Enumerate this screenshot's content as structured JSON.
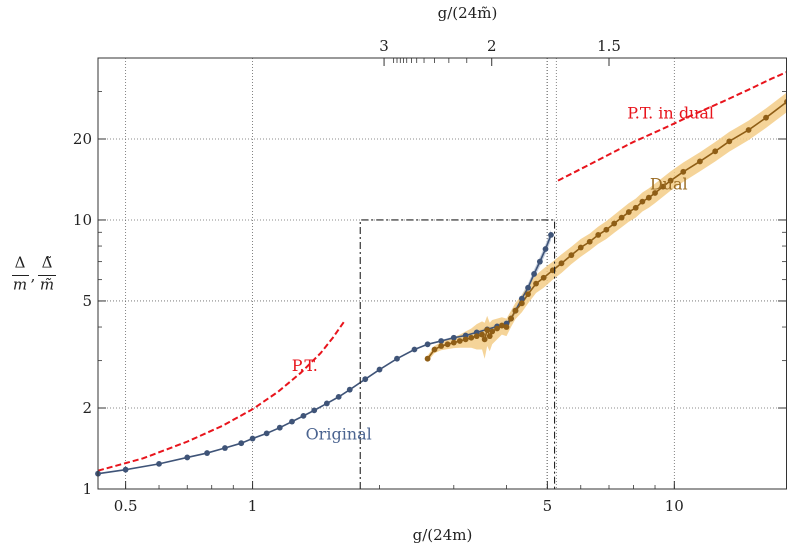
{
  "chart_data": {
    "type": "line",
    "scale": {
      "x": "log",
      "y": "log"
    },
    "xlabel": "g/(24m)",
    "x2label": "g/(24m̃)",
    "ylabel": {
      "num1": "Δ",
      "den1": "m",
      "sep": ",",
      "num2": "Δ̃",
      "den2": "m̃"
    },
    "xlim": [
      0.43,
      18.5
    ],
    "ylim": [
      1.0,
      40.0
    ],
    "grid": true,
    "xticks": [
      {
        "value": 0.5,
        "label": "0.5"
      },
      {
        "value": 1,
        "label": "1"
      },
      {
        "value": 5,
        "label": "5"
      },
      {
        "value": 10,
        "label": "10"
      }
    ],
    "x2ticks": [
      {
        "value": 2.05,
        "label": "3"
      },
      {
        "value": 3.69,
        "label": "2"
      },
      {
        "value": 7.0,
        "label": "1.5"
      }
    ],
    "x2minor": [
      2.16,
      2.2,
      2.24,
      2.28,
      2.32,
      2.38,
      2.45,
      2.55,
      2.7,
      2.92,
      3.22
    ],
    "x2grid": [
      4.99,
      5.25
    ],
    "yticks": [
      {
        "value": 1,
        "label": "1"
      },
      {
        "value": 2,
        "label": "2"
      },
      {
        "value": 5,
        "label": "5"
      },
      {
        "value": 10,
        "label": "10"
      },
      {
        "value": 20,
        "label": "20"
      }
    ],
    "box": {
      "x": [
        1.8,
        5.2
      ],
      "y": [
        1.0,
        10.0
      ]
    },
    "annotations": [
      {
        "text": "P.T.",
        "x": 1.33,
        "y": 2.75,
        "color": "#e8141c"
      },
      {
        "text": "P.T. in dual",
        "x": 9.8,
        "y": 23.8,
        "color": "#e8141c"
      },
      {
        "text": "Original",
        "x": 1.6,
        "y": 1.53,
        "color": "#4b6490"
      },
      {
        "text": "Dual",
        "x": 9.7,
        "y": 13.0,
        "color": "#9a6b22"
      }
    ],
    "series": [
      {
        "name": "Original",
        "color": "#3f5478",
        "band": "#b9c4d6",
        "x": [
          0.43,
          0.5,
          0.6,
          0.7,
          0.78,
          0.86,
          0.94,
          1.0,
          1.08,
          1.16,
          1.24,
          1.32,
          1.4,
          1.5,
          1.6,
          1.7,
          1.85,
          2.0,
          2.2,
          2.42,
          2.6,
          2.8,
          3.0,
          3.2,
          3.4,
          3.6,
          3.8,
          4.0,
          4.1,
          4.2,
          4.35,
          4.5,
          4.65,
          4.8,
          4.95,
          5.1
        ],
        "y": [
          1.14,
          1.18,
          1.24,
          1.31,
          1.36,
          1.42,
          1.48,
          1.54,
          1.61,
          1.69,
          1.78,
          1.87,
          1.96,
          2.08,
          2.2,
          2.34,
          2.56,
          2.78,
          3.05,
          3.3,
          3.45,
          3.55,
          3.65,
          3.72,
          3.82,
          3.92,
          4.02,
          4.12,
          4.3,
          4.6,
          5.1,
          5.6,
          6.3,
          7.0,
          7.8,
          8.8
        ],
        "error": [
          0.0,
          0.0,
          0.0,
          0.0,
          0.0,
          0.0,
          0.0,
          0.0,
          0.0,
          0.0,
          0.0,
          0.0,
          0.0,
          0.0,
          0.0,
          0.0,
          0.0,
          0.0,
          0.0,
          0.0,
          0.02,
          0.03,
          0.04,
          0.05,
          0.06,
          0.08,
          0.1,
          0.12,
          0.14,
          0.16,
          0.18,
          0.2,
          0.24,
          0.28,
          0.32,
          0.4
        ]
      },
      {
        "name": "Dual",
        "color": "#8f5e16",
        "band": "#f3cc87",
        "x": [
          2.6,
          2.7,
          2.8,
          2.9,
          3.0,
          3.1,
          3.2,
          3.3,
          3.4,
          3.5,
          3.55,
          3.6,
          3.65,
          3.7,
          3.8,
          3.9,
          4.0,
          4.1,
          4.2,
          4.35,
          4.5,
          4.7,
          4.9,
          5.15,
          5.4,
          5.7,
          6.0,
          6.3,
          6.6,
          6.9,
          7.2,
          7.5,
          7.8,
          8.1,
          8.4,
          8.7,
          9.0,
          9.4,
          9.8,
          10.5,
          11.5,
          12.5,
          13.5,
          15.0,
          16.5,
          18.5
        ],
        "y": [
          3.05,
          3.3,
          3.4,
          3.45,
          3.5,
          3.55,
          3.6,
          3.65,
          3.7,
          3.75,
          3.6,
          3.9,
          3.7,
          3.85,
          3.95,
          4.05,
          4.0,
          4.3,
          4.6,
          4.9,
          5.3,
          5.8,
          6.1,
          6.5,
          6.9,
          7.4,
          7.9,
          8.3,
          8.8,
          9.2,
          9.7,
          10.2,
          10.7,
          11.1,
          11.7,
          12.1,
          12.6,
          13.3,
          14.0,
          15.1,
          16.5,
          18.0,
          19.6,
          21.6,
          24.0,
          27.5
        ],
        "error": [
          0.08,
          0.1,
          0.12,
          0.14,
          0.16,
          0.2,
          0.25,
          0.3,
          0.4,
          0.45,
          0.55,
          0.5,
          0.45,
          0.4,
          0.35,
          0.3,
          0.3,
          0.3,
          0.32,
          0.36,
          0.4,
          0.45,
          0.5,
          0.5,
          0.55,
          0.55,
          0.6,
          0.6,
          0.65,
          0.7,
          0.75,
          0.8,
          0.85,
          0.9,
          0.95,
          1.0,
          1.05,
          1.1,
          1.15,
          1.25,
          1.35,
          1.5,
          1.65,
          1.8,
          2.0,
          2.3
        ]
      },
      {
        "name": "P.T.",
        "color": "#e8141c",
        "dashed": true,
        "x": [
          0.43,
          0.55,
          0.7,
          0.85,
          1.0,
          1.15,
          1.3,
          1.45,
          1.55,
          1.65
        ],
        "y": [
          1.17,
          1.3,
          1.5,
          1.72,
          1.98,
          2.3,
          2.7,
          3.2,
          3.65,
          4.2
        ]
      },
      {
        "name": "P.T. in dual",
        "color": "#e8141c",
        "dashed": true,
        "x": [
          5.3,
          6.5,
          8.0,
          9.5,
          11.0,
          13.0,
          15.0,
          17.0,
          18.5
        ],
        "y": [
          14.0,
          16.5,
          19.5,
          22.0,
          24.5,
          27.5,
          30.5,
          33.5,
          35.5
        ]
      }
    ]
  }
}
